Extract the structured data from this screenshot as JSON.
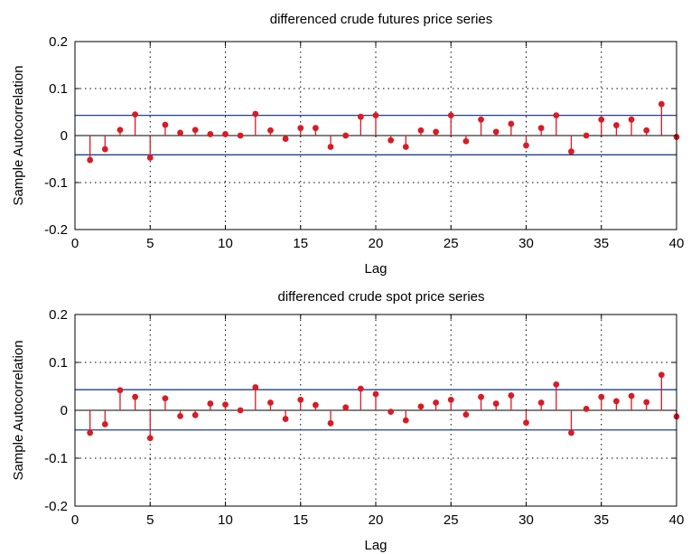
{
  "chart_data": [
    {
      "type": "stem",
      "title": "differenced crude futures price series",
      "xlabel": "Lag",
      "ylabel": "Sample Autocorrelation",
      "xlim": [
        0,
        40
      ],
      "ylim": [
        -0.2,
        0.2
      ],
      "xticks": [
        0,
        5,
        10,
        15,
        20,
        25,
        30,
        35,
        40
      ],
      "yticks": [
        -0.2,
        -0.1,
        0,
        0.1,
        0.2
      ],
      "ytick_labels": [
        "-0.2",
        "-0.1",
        "0",
        "0.1",
        "0.2"
      ],
      "grid": true,
      "confidence_bounds": [
        0.043,
        -0.041
      ],
      "stem_color": "#d81b25",
      "bound_color": "#1f3f8f",
      "lags": [
        1,
        2,
        3,
        4,
        5,
        6,
        7,
        8,
        9,
        10,
        11,
        12,
        13,
        14,
        15,
        16,
        17,
        18,
        19,
        20,
        21,
        22,
        23,
        24,
        25,
        26,
        27,
        28,
        29,
        30,
        31,
        32,
        33,
        34,
        35,
        36,
        37,
        38,
        39,
        40
      ],
      "values": [
        -0.052,
        -0.029,
        0.012,
        0.045,
        -0.047,
        0.023,
        0.006,
        0.012,
        0.003,
        0.003,
        0.0,
        0.046,
        0.011,
        -0.007,
        0.016,
        0.016,
        -0.024,
        0.0,
        0.04,
        0.043,
        -0.01,
        -0.024,
        0.011,
        0.008,
        0.043,
        -0.012,
        0.034,
        0.008,
        0.025,
        -0.021,
        0.016,
        0.043,
        -0.034,
        0.0,
        0.034,
        0.022,
        0.034,
        0.011,
        0.067,
        -0.003
      ]
    },
    {
      "type": "stem",
      "title": "differenced crude spot price series",
      "xlabel": "Lag",
      "ylabel": "Sample Autocorrelation",
      "xlim": [
        0,
        40
      ],
      "ylim": [
        -0.2,
        0.2
      ],
      "xticks": [
        0,
        5,
        10,
        15,
        20,
        25,
        30,
        35,
        40
      ],
      "yticks": [
        -0.2,
        -0.1,
        0,
        0.1,
        0.2
      ],
      "ytick_labels": [
        "-0.2",
        "-0.1",
        "0",
        "0.1",
        "0.2"
      ],
      "grid": true,
      "confidence_bounds": [
        0.043,
        -0.041
      ],
      "stem_color": "#d81b25",
      "bound_color": "#1f3f8f",
      "lags": [
        1,
        2,
        3,
        4,
        5,
        6,
        7,
        8,
        9,
        10,
        11,
        12,
        13,
        14,
        15,
        16,
        17,
        18,
        19,
        20,
        21,
        22,
        23,
        24,
        25,
        26,
        27,
        28,
        29,
        30,
        31,
        32,
        33,
        34,
        35,
        36,
        37,
        38,
        39,
        40
      ],
      "values": [
        -0.047,
        -0.029,
        0.042,
        0.028,
        -0.058,
        0.025,
        -0.012,
        -0.01,
        0.014,
        0.012,
        0.0,
        0.048,
        0.016,
        -0.018,
        0.022,
        0.011,
        -0.027,
        0.006,
        0.045,
        0.034,
        -0.003,
        -0.021,
        0.008,
        0.016,
        0.022,
        -0.009,
        0.028,
        0.014,
        0.031,
        -0.026,
        0.016,
        0.054,
        -0.047,
        0.003,
        0.028,
        0.019,
        0.03,
        0.017,
        0.074,
        -0.013
      ]
    }
  ]
}
